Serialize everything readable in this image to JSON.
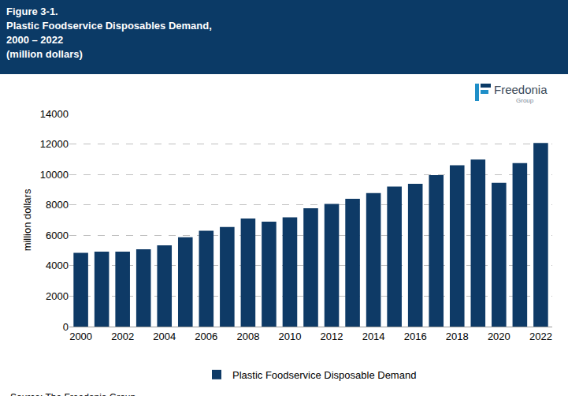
{
  "chart_data": {
    "type": "bar",
    "title": "Figure 3-1.\nPlastic Foodservice Disposables Demand,\n2000 – 2022\n(million dollars)",
    "y_label": "million dollars",
    "annotations": [
      "Freedonia",
      "Group"
    ],
    "source": "Source: The Freedonia Group",
    "x": [
      2000,
      2001,
      2002,
      2003,
      2004,
      2005,
      2006,
      2007,
      2008,
      2009,
      2010,
      2011,
      2012,
      2013,
      2014,
      2015,
      2016,
      2017,
      2018,
      2019,
      2020,
      2021,
      2022
    ],
    "series": [
      {
        "name": "Plastic Foodservice Disposable Demand",
        "color": "#0e3a66",
        "values": [
          4850,
          4920,
          4920,
          5080,
          5340,
          5870,
          6300,
          6540,
          7100,
          6900,
          7180,
          7780,
          8060,
          8400,
          8780,
          9200,
          9380,
          9950,
          10600,
          10980,
          9450,
          10750,
          12070
        ]
      }
    ],
    "xlim": [
      1999.45,
      2022.55
    ],
    "xticks": [
      2000,
      2002,
      2004,
      2006,
      2008,
      2010,
      2012,
      2014,
      2016,
      2018,
      2020,
      2022
    ],
    "ylim": [
      0,
      14000
    ],
    "yticks": [
      0,
      2000,
      4000,
      6000,
      8000,
      10000,
      12000,
      14000
    ],
    "grid": true,
    "legend": "bottom"
  }
}
